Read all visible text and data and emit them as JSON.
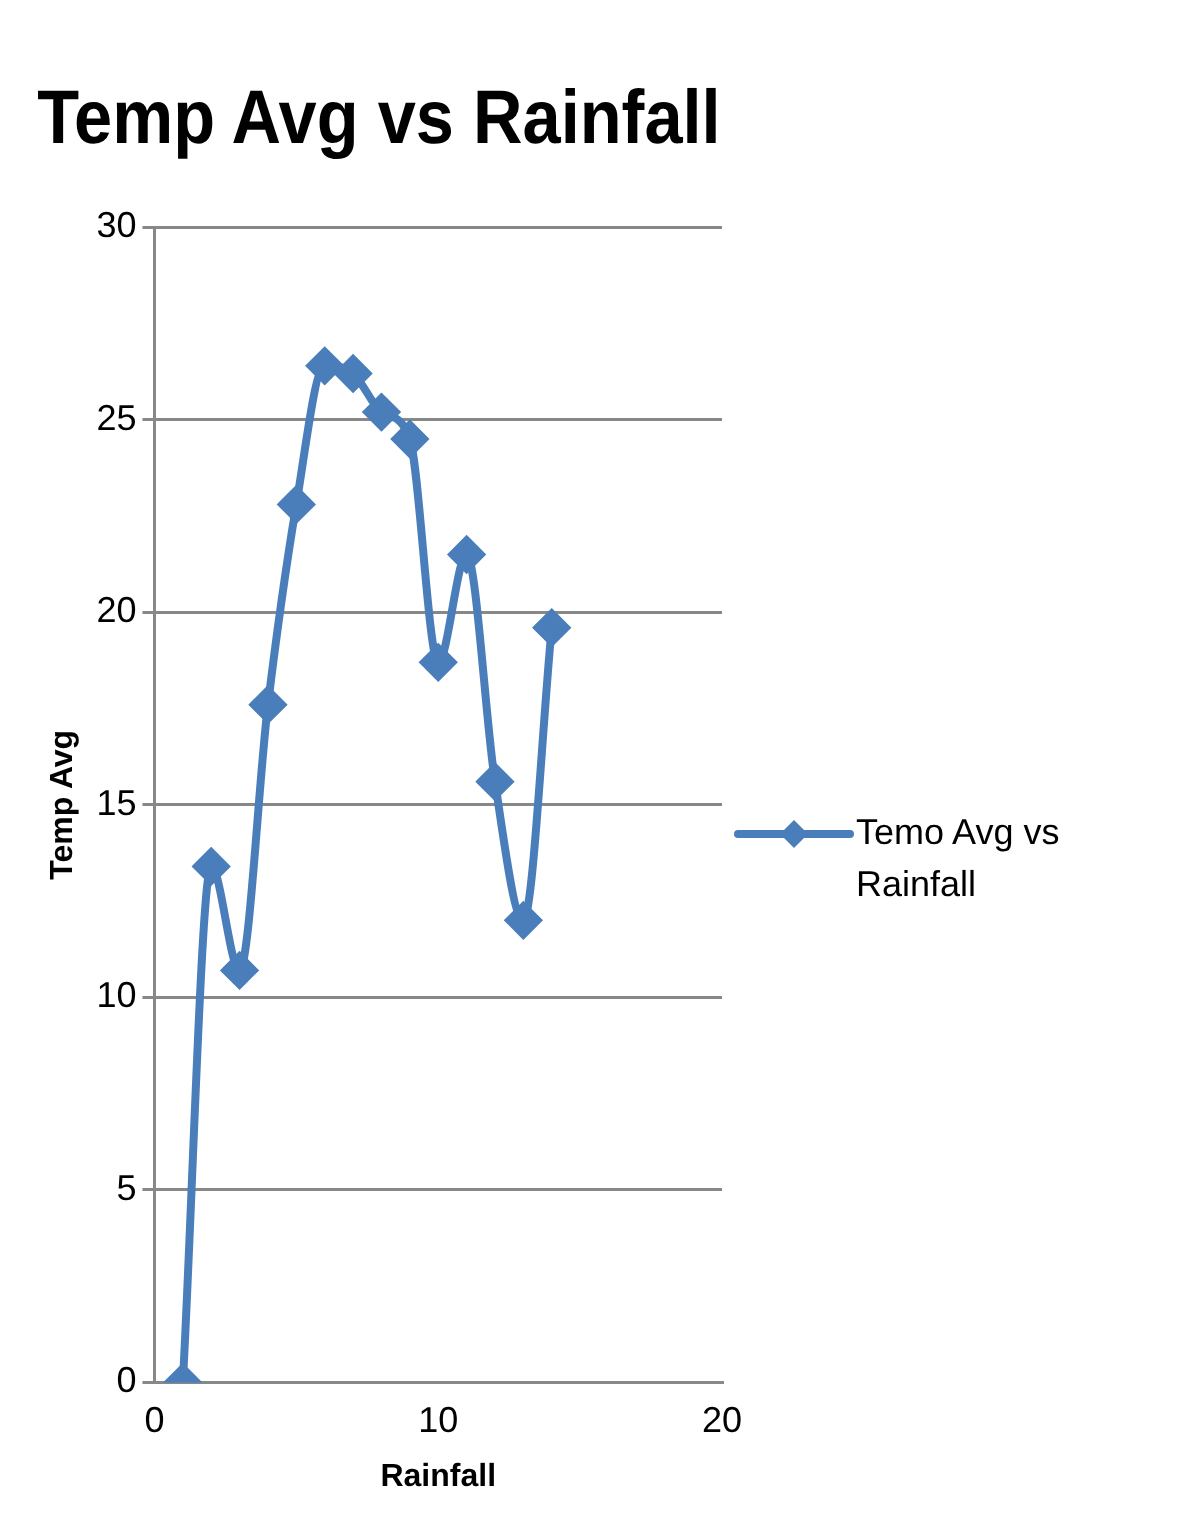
{
  "chart_data": {
    "type": "line",
    "title": "Temp Avg vs Rainfall",
    "xlabel": "Rainfall",
    "ylabel": "Temp Avg",
    "x": [
      1,
      2,
      3,
      4,
      5,
      6,
      7,
      8,
      9,
      10,
      11,
      12,
      13,
      14
    ],
    "series": [
      {
        "name": "Temo Avg vs Rainfall",
        "color": "#4a7ebb",
        "values": [
          0,
          13.4,
          10.7,
          17.6,
          22.8,
          26.4,
          26.2,
          25.2,
          24.5,
          18.7,
          21.5,
          15.6,
          12.0,
          19.6
        ]
      }
    ],
    "xlim": [
      0,
      20
    ],
    "xticks": [
      0,
      10,
      20
    ],
    "ylim": [
      0,
      30
    ],
    "yticks": [
      0,
      5,
      10,
      15,
      20,
      25,
      30
    ],
    "grid": "y",
    "legend": "right",
    "marker": "diamond",
    "line_style": "solid"
  }
}
